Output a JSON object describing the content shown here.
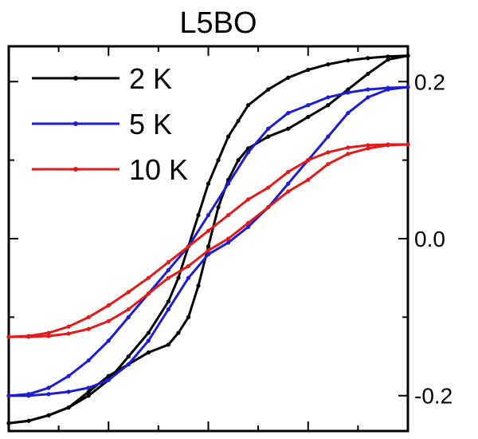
{
  "chart_data": {
    "type": "line",
    "title": "L5BO",
    "xlabel": "",
    "ylabel": "",
    "xlim": [
      -1,
      1
    ],
    "ylim": [
      -0.245,
      0.245
    ],
    "y_axis_side": "right",
    "yticks": [
      0.2,
      0.0,
      -0.2
    ],
    "ytick_labels": [
      "0.2",
      "0.0",
      "-0.2"
    ],
    "legend_position": "top-left",
    "series": [
      {
        "name": "2 K",
        "color": "#000000",
        "upper_branch": {
          "x": [
            -1.0,
            -0.9,
            -0.8,
            -0.7,
            -0.6,
            -0.5,
            -0.4,
            -0.3,
            -0.2,
            -0.15,
            -0.1,
            -0.05,
            0.0,
            0.05,
            0.1,
            0.15,
            0.2,
            0.3,
            0.4,
            0.5,
            0.6,
            0.7,
            0.8,
            0.9,
            1.0
          ],
          "y": [
            -0.235,
            -0.232,
            -0.225,
            -0.215,
            -0.2,
            -0.18,
            -0.15,
            -0.12,
            -0.08,
            -0.05,
            -0.01,
            0.03,
            0.07,
            0.1,
            0.13,
            0.15,
            0.17,
            0.19,
            0.205,
            0.215,
            0.222,
            0.227,
            0.23,
            0.232,
            0.233
          ]
        },
        "lower_branch": {
          "x": [
            1.0,
            0.9,
            0.8,
            0.7,
            0.6,
            0.5,
            0.4,
            0.3,
            0.2,
            0.15,
            0.1,
            0.05,
            0.0,
            -0.05,
            -0.1,
            -0.15,
            -0.2,
            -0.3,
            -0.4,
            -0.5,
            -0.6,
            -0.7,
            -0.8,
            -0.9,
            -1.0
          ],
          "y": [
            0.233,
            0.228,
            0.21,
            0.19,
            0.17,
            0.155,
            0.14,
            0.13,
            0.115,
            0.1,
            0.075,
            0.04,
            -0.01,
            -0.06,
            -0.1,
            -0.12,
            -0.135,
            -0.145,
            -0.16,
            -0.175,
            -0.195,
            -0.215,
            -0.225,
            -0.232,
            -0.235
          ]
        }
      },
      {
        "name": "5 K",
        "color": "#1d1dd6",
        "upper_branch": {
          "x": [
            -1.0,
            -0.9,
            -0.8,
            -0.7,
            -0.6,
            -0.5,
            -0.4,
            -0.3,
            -0.2,
            -0.1,
            0.0,
            0.1,
            0.2,
            0.3,
            0.4,
            0.5,
            0.6,
            0.7,
            0.8,
            0.9,
            1.0
          ],
          "y": [
            -0.2,
            -0.198,
            -0.19,
            -0.175,
            -0.155,
            -0.13,
            -0.1,
            -0.07,
            -0.04,
            -0.01,
            0.03,
            0.07,
            0.11,
            0.14,
            0.16,
            0.17,
            0.18,
            0.186,
            0.19,
            0.192,
            0.193
          ]
        },
        "lower_branch": {
          "x": [
            1.0,
            0.9,
            0.8,
            0.7,
            0.6,
            0.5,
            0.4,
            0.3,
            0.2,
            0.1,
            0.0,
            -0.1,
            -0.2,
            -0.3,
            -0.4,
            -0.5,
            -0.6,
            -0.7,
            -0.8,
            -0.9,
            -1.0
          ],
          "y": [
            0.193,
            0.19,
            0.18,
            0.16,
            0.13,
            0.1,
            0.07,
            0.04,
            0.015,
            -0.005,
            -0.02,
            -0.05,
            -0.09,
            -0.13,
            -0.16,
            -0.18,
            -0.19,
            -0.195,
            -0.198,
            -0.2,
            -0.2
          ]
        }
      },
      {
        "name": "10 K",
        "color": "#e31a1a",
        "upper_branch": {
          "x": [
            -1.0,
            -0.9,
            -0.8,
            -0.7,
            -0.6,
            -0.5,
            -0.4,
            -0.3,
            -0.2,
            -0.1,
            0.0,
            0.1,
            0.2,
            0.3,
            0.4,
            0.5,
            0.6,
            0.7,
            0.8,
            0.9,
            1.0
          ],
          "y": [
            -0.125,
            -0.124,
            -0.12,
            -0.112,
            -0.1,
            -0.085,
            -0.068,
            -0.05,
            -0.03,
            -0.01,
            0.01,
            0.03,
            0.05,
            0.065,
            0.085,
            0.1,
            0.11,
            0.116,
            0.119,
            0.12,
            0.12
          ]
        },
        "lower_branch": {
          "x": [
            1.0,
            0.9,
            0.8,
            0.7,
            0.6,
            0.5,
            0.4,
            0.3,
            0.2,
            0.1,
            0.0,
            -0.1,
            -0.2,
            -0.3,
            -0.4,
            -0.5,
            -0.6,
            -0.7,
            -0.8,
            -0.9,
            -1.0
          ],
          "y": [
            0.12,
            0.119,
            0.115,
            0.108,
            0.095,
            0.075,
            0.06,
            0.04,
            0.02,
            0.0,
            -0.015,
            -0.035,
            -0.05,
            -0.07,
            -0.09,
            -0.105,
            -0.115,
            -0.121,
            -0.124,
            -0.125,
            -0.125
          ]
        }
      }
    ]
  }
}
